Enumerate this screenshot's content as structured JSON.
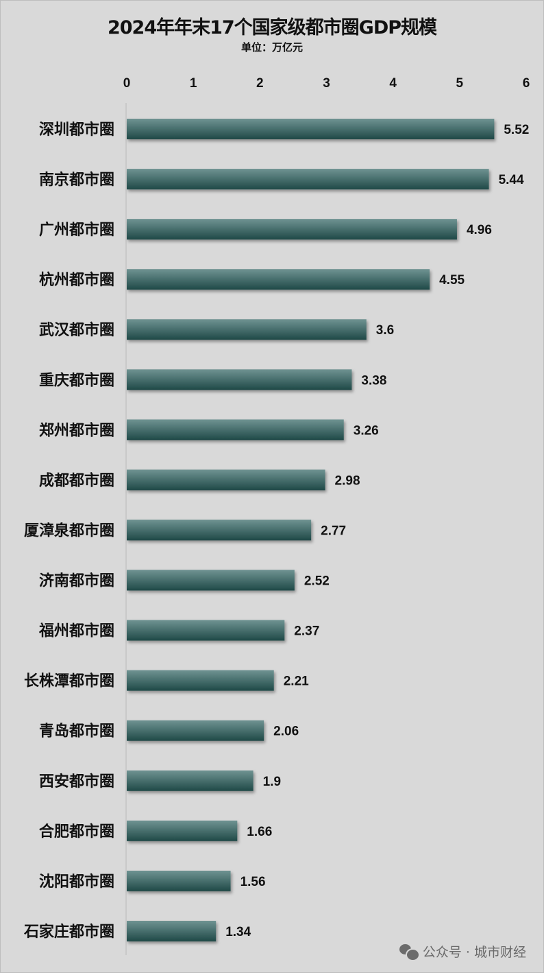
{
  "chart_data": {
    "type": "bar",
    "orientation": "horizontal",
    "title": "2024年年末17个国家级都市圈GDP规模",
    "subtitle": "单位：万亿元",
    "categories": [
      "深圳都市圈",
      "南京都市圈",
      "广州都市圈",
      "杭州都市圈",
      "武汉都市圈",
      "重庆都市圈",
      "郑州都市圈",
      "成都都市圈",
      "厦漳泉都市圈",
      "济南都市圈",
      "福州都市圈",
      "长株潭都市圈",
      "青岛都市圈",
      "西安都市圈",
      "合肥都市圈",
      "沈阳都市圈",
      "石家庄都市圈"
    ],
    "values": [
      5.52,
      5.44,
      4.96,
      4.55,
      3.6,
      3.38,
      3.26,
      2.98,
      2.77,
      2.52,
      2.37,
      2.21,
      2.06,
      1.9,
      1.66,
      1.56,
      1.34
    ],
    "value_labels": [
      "5.52",
      "5.44",
      "4.96",
      "4.55",
      "3.6",
      "3.38",
      "3.26",
      "2.98",
      "2.77",
      "2.52",
      "2.37",
      "2.21",
      "2.06",
      "1.9",
      "1.66",
      "1.56",
      "1.34"
    ],
    "xlim": [
      0,
      6
    ],
    "x_ticks": [
      "0",
      "1",
      "2",
      "3",
      "4",
      "5",
      "6"
    ],
    "axis_position": "top",
    "grid": false,
    "bar_color_top": "#6f9392",
    "bar_color_bottom": "#1f4947",
    "background": "#d9d9d9"
  },
  "watermark": {
    "icon": "wechat-icon",
    "text": "公众号 · 城市财经"
  }
}
